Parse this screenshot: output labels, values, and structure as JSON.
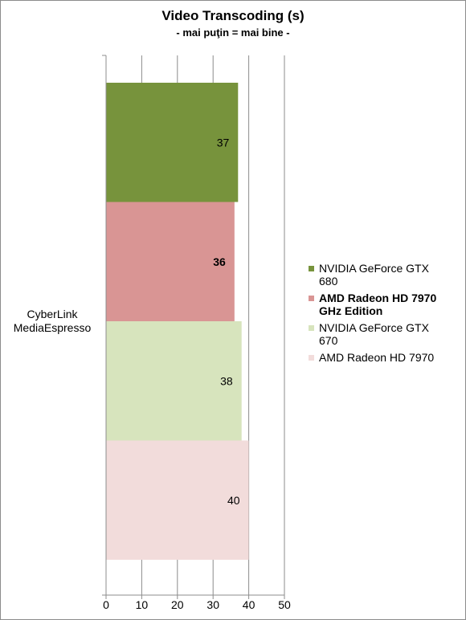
{
  "chart_data": {
    "type": "bar",
    "orientation": "horizontal",
    "title": "Video Transcoding (s)",
    "subtitle": "- mai puţin = mai bine -",
    "categories": [
      "CyberLink MediaEspresso"
    ],
    "category_label_lines": [
      "CyberLink",
      "MediaEspresso"
    ],
    "series": [
      {
        "name": "NVIDIA GeForce GTX 680",
        "name_lines": [
          "NVIDIA GeForce GTX",
          "680"
        ],
        "values": [
          37
        ],
        "label": "37",
        "color": "#77933c",
        "bold": false
      },
      {
        "name": "AMD Radeon HD 7970 GHz Edition",
        "name_lines": [
          "AMD Radeon HD 7970",
          "GHz Edition"
        ],
        "values": [
          36
        ],
        "label": "36",
        "color": "#d99594",
        "bold": true
      },
      {
        "name": "NVIDIA GeForce GTX 670",
        "name_lines": [
          "NVIDIA GeForce GTX",
          "670"
        ],
        "values": [
          38
        ],
        "label": "38",
        "color": "#d7e4bd",
        "bold": false
      },
      {
        "name": "AMD Radeon HD 7970",
        "name_lines": [
          "AMD Radeon HD 7970"
        ],
        "values": [
          40
        ],
        "label": "40",
        "color": "#f2dcdb",
        "bold": false
      }
    ],
    "xlim": [
      0,
      50
    ],
    "xticks": [
      "0",
      "10",
      "20",
      "30",
      "40",
      "50"
    ],
    "grid": true,
    "legend_position": "right"
  }
}
